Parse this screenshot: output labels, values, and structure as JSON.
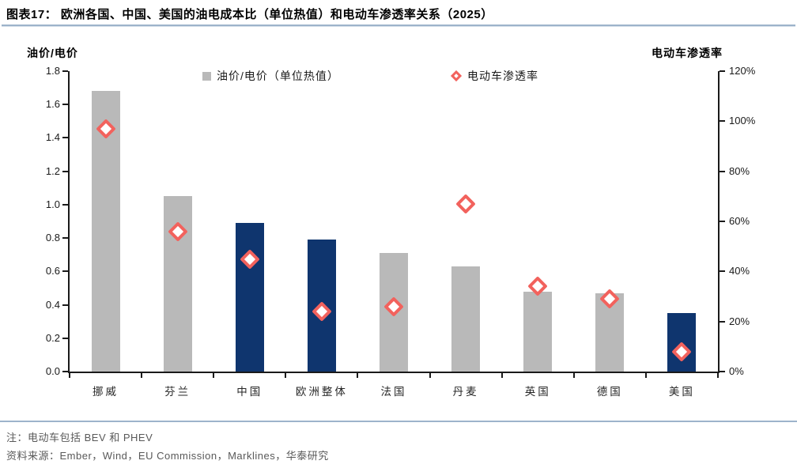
{
  "header": {
    "title": "图表17：  欧洲各国、中国、美国的油电成本比（单位热值）和电动车渗透率关系（2025）"
  },
  "chart_data": {
    "type": "bar",
    "title": "欧洲各国、中国、美国的油电成本比（单位热值）和电动车渗透率关系（2025）",
    "categories": [
      "挪威",
      "芬兰",
      "中国",
      "欧洲整体",
      "法国",
      "丹麦",
      "英国",
      "德国",
      "美国"
    ],
    "series": [
      {
        "name": "油价/电价（单位热值）",
        "type": "bar",
        "axis": "left",
        "values": [
          1.68,
          1.05,
          0.89,
          0.79,
          0.71,
          0.63,
          0.48,
          0.47,
          0.35
        ],
        "bar_colors": [
          "gray",
          "gray",
          "navy",
          "navy",
          "gray",
          "gray",
          "gray",
          "gray",
          "navy"
        ]
      },
      {
        "name": "电动车渗透率",
        "type": "scatter",
        "axis": "right",
        "marker": "diamond",
        "values": [
          97,
          56,
          45,
          24,
          26,
          67,
          34,
          29,
          8
        ],
        "unit": "%"
      }
    ],
    "left_axis": {
      "title": "油价/电价",
      "min": 0,
      "max": 1.8,
      "ticks": [
        "1.8",
        "1.6",
        "1.4",
        "1.2",
        "1.0",
        "0.8",
        "0.6",
        "0.4",
        "0.2",
        "0.0"
      ]
    },
    "right_axis": {
      "title": "电动车渗透率",
      "min": 0,
      "max": 120,
      "ticks": [
        "120%",
        "100%",
        "80%",
        "60%",
        "40%",
        "20%",
        "0%"
      ]
    },
    "legend_position": "top",
    "grid": false
  },
  "colors": {
    "gray": "#b9b9b9",
    "navy": "#0f356e",
    "diamond_stroke": "#f2625d",
    "axis": "#1a1a1a",
    "rule_blue": "#9db3cb",
    "note_text": "#595959"
  },
  "footer": {
    "note": "注：电动车包括 BEV 和 PHEV",
    "source": "资料来源：Ember，Wind，EU Commission，Marklines，华泰研究"
  }
}
